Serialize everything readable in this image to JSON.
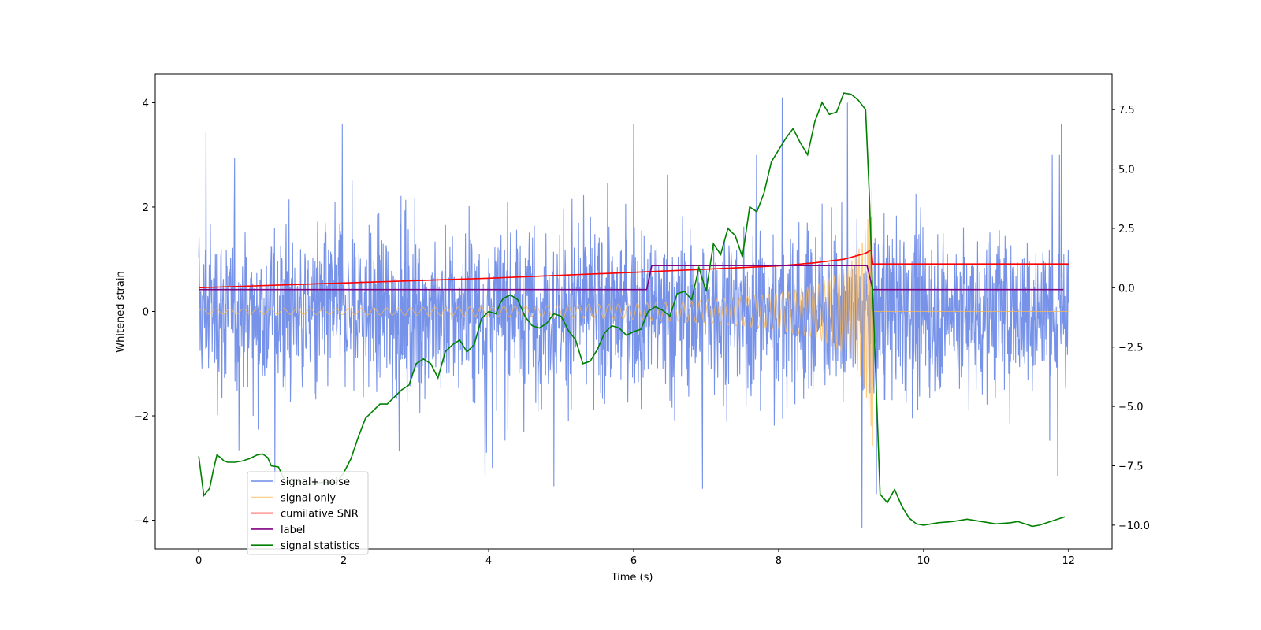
{
  "chart_data": {
    "type": "line",
    "title": "",
    "xlabel": "Time (s)",
    "ylabel": "Whitened strain",
    "y2label": "",
    "xlim": [
      -0.6,
      12.6
    ],
    "ylim": [
      -4.55,
      4.55
    ],
    "y2lim": [
      -11.0,
      9.0
    ],
    "xticks": [
      0,
      2,
      4,
      6,
      8,
      10,
      12
    ],
    "xtick_labels": [
      "0",
      "2",
      "4",
      "6",
      "8",
      "10",
      "12"
    ],
    "yticks": [
      -4,
      -2,
      0,
      2,
      4
    ],
    "ytick_labels": [
      "−4",
      "−2",
      "0",
      "2",
      "4"
    ],
    "y2ticks": [
      -10.0,
      -7.5,
      -5.0,
      -2.5,
      0.0,
      2.5,
      5.0,
      7.5
    ],
    "y2tick_labels": [
      "−10.0",
      "−7.5",
      "−5.0",
      "−2.5",
      "0.0",
      "2.5",
      "5.0",
      "7.5"
    ],
    "grid": false,
    "legend_position": "lower-left",
    "colors": {
      "noise": "#6f8ce8",
      "signal": "#ffb74d",
      "snr": "#ff0000",
      "label": "#800080",
      "stats": "#008000"
    },
    "series": [
      {
        "name": "signal+ noise",
        "axis": "left",
        "description_values": {
          "x_range": [
            0,
            12
          ],
          "typical_abs_amplitude": 1.3,
          "extremes": [
            {
              "x": 0.1,
              "y": 3.45
            },
            {
              "x": 1.98,
              "y": 3.6
            },
            {
              "x": 6.0,
              "y": 3.6
            },
            {
              "x": 8.05,
              "y": 4.1
            },
            {
              "x": 8.95,
              "y": 4.0
            },
            {
              "x": 11.9,
              "y": 3.6
            },
            {
              "x": 1.05,
              "y": -3.3
            },
            {
              "x": 3.95,
              "y": -3.15
            },
            {
              "x": 4.9,
              "y": -3.35
            },
            {
              "x": 6.95,
              "y": -3.4
            },
            {
              "x": 9.15,
              "y": -4.15
            },
            {
              "x": 9.35,
              "y": -3.5
            },
            {
              "x": 11.85,
              "y": -3.15
            }
          ]
        }
      },
      {
        "name": "signal only",
        "axis": "left",
        "envelope": [
          {
            "x": 0,
            "y": 0.05
          },
          {
            "x": 2,
            "y": 0.06
          },
          {
            "x": 4,
            "y": 0.09
          },
          {
            "x": 6,
            "y": 0.15
          },
          {
            "x": 7,
            "y": 0.22
          },
          {
            "x": 8,
            "y": 0.35
          },
          {
            "x": 8.5,
            "y": 0.5
          },
          {
            "x": 8.8,
            "y": 0.7
          },
          {
            "x": 9.0,
            "y": 0.95
          },
          {
            "x": 9.15,
            "y": 1.3
          },
          {
            "x": 9.25,
            "y": 1.9
          },
          {
            "x": 9.3,
            "y": 2.6
          },
          {
            "x": 9.31,
            "y": 0.0
          },
          {
            "x": 12,
            "y": 0.0
          }
        ]
      },
      {
        "name": "cumilative SNR",
        "axis": "right",
        "x": [
          0,
          2,
          4,
          6,
          7,
          8,
          8.5,
          8.9,
          9.2,
          9.28,
          9.3,
          12
        ],
        "values": [
          0.0,
          0.2,
          0.4,
          0.65,
          0.78,
          0.92,
          1.05,
          1.2,
          1.45,
          1.6,
          1.0,
          1.0
        ]
      },
      {
        "name": "label",
        "axis": "left",
        "x": [
          0,
          6.18,
          6.25,
          9.22,
          9.3,
          11.93
        ],
        "values": [
          0.42,
          0.42,
          0.88,
          0.88,
          0.42,
          0.42
        ]
      },
      {
        "name": "signal statistics",
        "axis": "right",
        "x": [
          0,
          0.07,
          0.15,
          0.2,
          0.25,
          0.3,
          0.35,
          0.4,
          0.5,
          0.6,
          0.7,
          0.8,
          0.88,
          0.95,
          1.0,
          1.1,
          1.2,
          1.3,
          1.5,
          1.7,
          1.9,
          2.0,
          2.1,
          2.2,
          2.3,
          2.5,
          2.6,
          2.7,
          2.8,
          2.9,
          3.0,
          3.1,
          3.2,
          3.3,
          3.4,
          3.5,
          3.6,
          3.7,
          3.8,
          3.9,
          4.0,
          4.1,
          4.15,
          4.2,
          4.3,
          4.4,
          4.5,
          4.6,
          4.7,
          4.8,
          4.9,
          5.0,
          5.1,
          5.2,
          5.3,
          5.4,
          5.5,
          5.6,
          5.7,
          5.8,
          5.9,
          6.0,
          6.1,
          6.2,
          6.3,
          6.4,
          6.5,
          6.6,
          6.7,
          6.8,
          6.9,
          7.0,
          7.1,
          7.2,
          7.3,
          7.4,
          7.5,
          7.6,
          7.7,
          7.8,
          7.9,
          8.0,
          8.1,
          8.2,
          8.3,
          8.4,
          8.5,
          8.6,
          8.7,
          8.8,
          8.9,
          9.0,
          9.1,
          9.2,
          9.25,
          9.3,
          9.35,
          9.4,
          9.5,
          9.6,
          9.7,
          9.8,
          9.9,
          10.0,
          10.2,
          10.4,
          10.6,
          10.8,
          11.0,
          11.2,
          11.3,
          11.4,
          11.5,
          11.6,
          11.8,
          11.95
        ],
        "values": [
          -7.1,
          -8.75,
          -8.45,
          -7.7,
          -7.05,
          -7.15,
          -7.3,
          -7.35,
          -7.35,
          -7.3,
          -7.2,
          -7.05,
          -7.0,
          -7.15,
          -7.5,
          -7.55,
          -8.2,
          -8.05,
          -8.3,
          -8.2,
          -8.2,
          -7.8,
          -7.2,
          -6.3,
          -5.5,
          -4.9,
          -4.9,
          -4.6,
          -4.3,
          -4.1,
          -3.2,
          -3.0,
          -3.2,
          -3.8,
          -2.7,
          -2.4,
          -2.2,
          -2.7,
          -2.4,
          -1.3,
          -1.0,
          -1.1,
          -0.7,
          -0.45,
          -0.3,
          -0.5,
          -1.2,
          -1.6,
          -1.7,
          -1.5,
          -1.1,
          -1.2,
          -1.8,
          -2.2,
          -3.2,
          -3.1,
          -2.6,
          -1.9,
          -1.6,
          -1.7,
          -2.0,
          -1.85,
          -1.75,
          -1.0,
          -0.8,
          -0.95,
          -1.2,
          -0.25,
          -0.15,
          -0.5,
          0.85,
          -0.15,
          1.85,
          1.4,
          2.5,
          2.2,
          1.3,
          3.4,
          3.2,
          4.0,
          5.3,
          5.8,
          6.3,
          6.7,
          6.1,
          5.6,
          7.0,
          7.8,
          7.3,
          7.4,
          8.2,
          8.15,
          7.9,
          7.5,
          4.0,
          -0.3,
          -4.5,
          -8.7,
          -9.05,
          -8.5,
          -9.2,
          -9.7,
          -9.95,
          -10.0,
          -9.9,
          -9.85,
          -9.75,
          -9.85,
          -9.95,
          -9.9,
          -9.85,
          -9.95,
          -10.05,
          -10.0,
          -9.8,
          -9.65
        ]
      }
    ]
  }
}
